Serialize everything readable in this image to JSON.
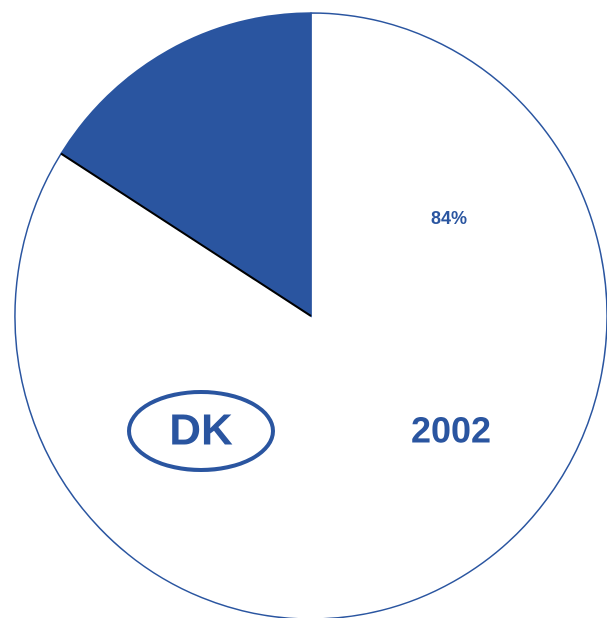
{
  "chart_data": {
    "type": "pie",
    "values": [
      84,
      16
    ],
    "value_labels": [
      "84%",
      null
    ],
    "colors": [
      "#ffffff",
      "#2a55a0"
    ],
    "annotations": [
      "DK",
      "2002"
    ]
  }
}
